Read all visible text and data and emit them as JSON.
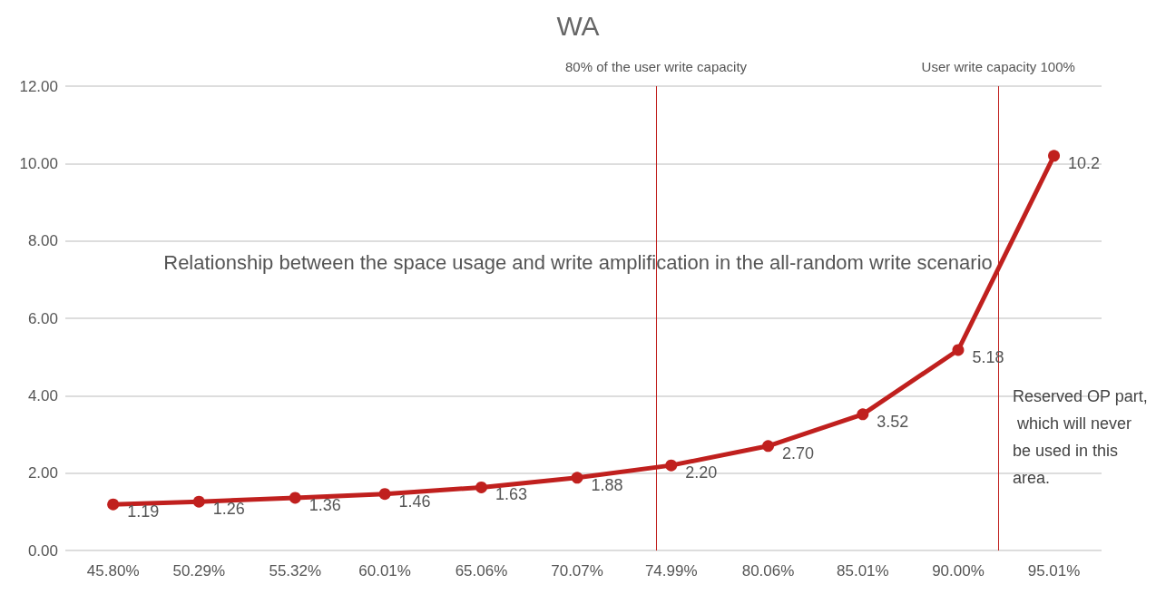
{
  "chart_data": {
    "type": "line",
    "title": "WA",
    "x": [
      45.8,
      50.29,
      55.32,
      60.01,
      65.06,
      70.07,
      74.99,
      80.06,
      85.01,
      90.0,
      95.01
    ],
    "xlim": [
      43.3,
      97.5
    ],
    "xticks": [
      {
        "value": 45.8,
        "label": "45.80%"
      },
      {
        "value": 50.29,
        "label": "50.29%"
      },
      {
        "value": 55.32,
        "label": "55.32%"
      },
      {
        "value": 60.01,
        "label": "60.01%"
      },
      {
        "value": 65.06,
        "label": "65.06%"
      },
      {
        "value": 70.07,
        "label": "70.07%"
      },
      {
        "value": 74.99,
        "label": "74.99%"
      },
      {
        "value": 80.06,
        "label": "80.06%"
      },
      {
        "value": 85.01,
        "label": "85.01%"
      },
      {
        "value": 90.0,
        "label": "90.00%"
      },
      {
        "value": 95.01,
        "label": "95.01%"
      }
    ],
    "series": [
      {
        "color": "#c0201e",
        "values": [
          1.19,
          1.26,
          1.36,
          1.46,
          1.63,
          1.88,
          2.2,
          2.7,
          3.52,
          5.18,
          10.2
        ],
        "value_labels": [
          "1.19",
          "1.26",
          "1.36",
          "1.46",
          "1.63",
          "1.88",
          "2.20",
          "2.70",
          "3.52",
          "5.18",
          "10.2"
        ]
      }
    ],
    "ylim": [
      0,
      12
    ],
    "yticks": [
      {
        "value": 0,
        "label": "0.00"
      },
      {
        "value": 2,
        "label": "2.00"
      },
      {
        "value": 4,
        "label": "4.00"
      },
      {
        "value": 6,
        "label": "6.00"
      },
      {
        "value": 8,
        "label": "8.00"
      },
      {
        "value": 10,
        "label": "10.00"
      },
      {
        "value": 12,
        "label": "12.00"
      }
    ],
    "grid": "y",
    "marker": "circle",
    "line_style": "solid",
    "ref_lines": [
      {
        "axis": "x",
        "value": 74.2,
        "label": "80% of the user write capacity",
        "color": "#c0201e"
      },
      {
        "axis": "x",
        "value": 92.1,
        "label": "User write capacity 100%",
        "color": "#c0201e"
      }
    ],
    "annotations": [
      "Relationship between the space usage and write amplification in the all-random write scenario",
      "Reserved OP part, which will never be used in this area."
    ]
  }
}
